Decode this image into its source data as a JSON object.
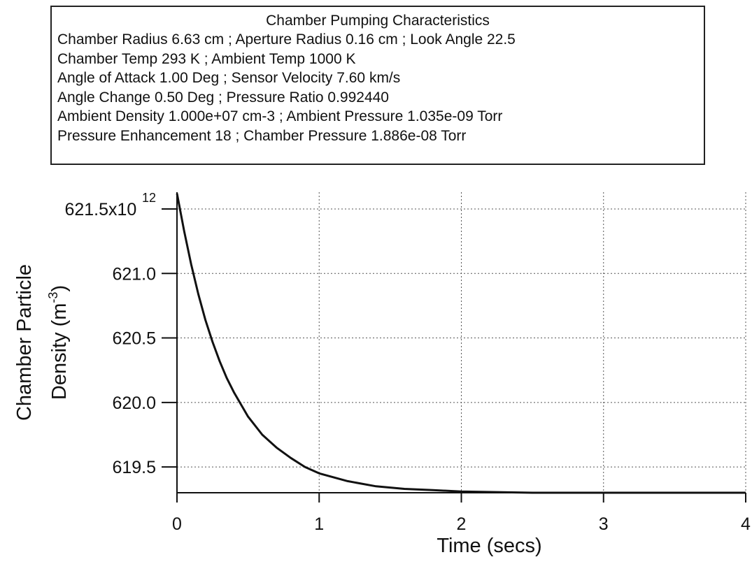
{
  "info_panel": {
    "title": "Chamber Pumping Characteristics",
    "lines": [
      "Chamber Radius  6.63  cm  ; Aperture Radius  0.16  cm ; Look Angle 22.5",
      "Chamber Temp   293  K  ; Ambient Temp  1000  K",
      "Angle of Attack  1.00  Deg  ; Sensor Velocity  7.60  km/s",
      "Angle Change  0.50  Deg  ; Pressure Ratio  0.992440",
      "Ambient Density  1.000e+07  cm-3  ;  Ambient Pressure  1.035e-09 Torr",
      "Pressure Enhancement   18   ;  Chamber Pressure  1.886e-08  Torr"
    ]
  },
  "chart_data": {
    "type": "line",
    "title": "",
    "xlabel": "Time (secs)",
    "ylabel_line1": "Chamber Particle",
    "ylabel_line2": "Density (m",
    "ylabel_exponent": "-3",
    "ylabel_suffix": ")",
    "y_multiplier_label": "x10",
    "y_multiplier_exponent": "12",
    "xlim": [
      0,
      4
    ],
    "ylim": [
      619.3,
      621.63
    ],
    "x_ticks": [
      0,
      1,
      2,
      3,
      4
    ],
    "x_tick_labels": [
      "0",
      "1",
      "2",
      "3",
      "4"
    ],
    "y_ticks": [
      619.5,
      620.0,
      620.5,
      621.0,
      621.5
    ],
    "y_tick_labels": [
      "619.5",
      "620.0",
      "620.5",
      "621.0",
      "621.5"
    ],
    "grid": true,
    "series": [
      {
        "x": [
          0.0,
          0.05,
          0.1,
          0.15,
          0.2,
          0.25,
          0.3,
          0.35,
          0.4,
          0.5,
          0.6,
          0.7,
          0.8,
          0.9,
          1.0,
          1.2,
          1.4,
          1.6,
          1.8,
          2.0,
          2.5,
          3.0,
          3.5,
          4.0
        ],
        "y": [
          621.62,
          621.33,
          621.07,
          620.84,
          620.64,
          620.47,
          620.32,
          620.19,
          620.08,
          619.89,
          619.75,
          619.65,
          619.57,
          619.5,
          619.45,
          619.39,
          619.35,
          619.33,
          619.32,
          619.31,
          619.3,
          619.3,
          619.3,
          619.3
        ]
      }
    ]
  }
}
